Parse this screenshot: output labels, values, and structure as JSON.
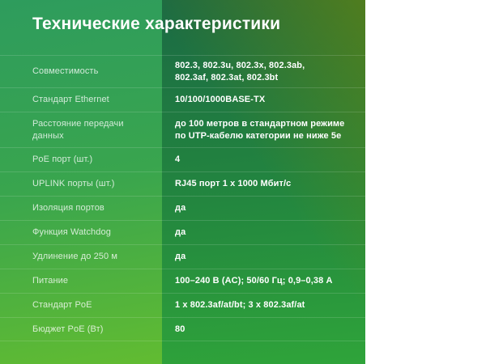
{
  "title": "Технические характеристики",
  "colors": {
    "panel_green_top_left": "#2E9C5D",
    "panel_lime_bottom_left": "#69C02C",
    "band_dark_green_top": "#1B6A44",
    "band_green_bottom": "#2FA43A",
    "band_olive_top_right": "#4A8C27",
    "text": "#FFFFFF"
  },
  "specs": {
    "rows": [
      {
        "label": "Совместимость",
        "value": "802.3, 802.3u, 802.3x, 802.3ab,\n802.3af, 802.3at, 802.3bt"
      },
      {
        "label": "Стандарт Ethernet",
        "value": "10/100/1000BASE-TX"
      },
      {
        "label": "Расстояние передачи данных",
        "value": "до 100 метров в стандартном режиме\nпо UTP-кабелю категории не ниже 5e"
      },
      {
        "label": "PoE порт (шт.)",
        "value": "4"
      },
      {
        "label": "UPLINK порты (шт.)",
        "value": "RJ45 порт 1 x 1000 Мбит/с"
      },
      {
        "label": "Изоляция портов",
        "value": "да"
      },
      {
        "label": "Функция Watchdog",
        "value": "да"
      },
      {
        "label": "Удлинение до 250 м",
        "value": "да"
      },
      {
        "label": "Питание",
        "value": "100–240 В (AC); 50/60 Гц; 0,9–0,38 А"
      },
      {
        "label": "Стандарт PoE",
        "value": "1 x 802.3af/at/bt; 3 x 802.3af/at"
      },
      {
        "label": "Бюджет PoE (Вт)",
        "value": "80"
      }
    ]
  }
}
